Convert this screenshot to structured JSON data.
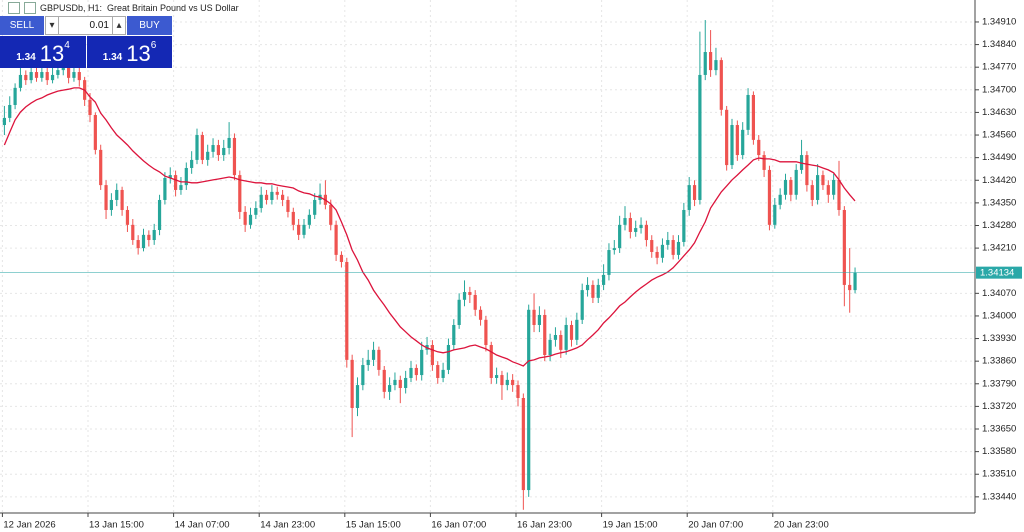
{
  "chart_data": {
    "type": "candlestick",
    "title": "GBPUSDb, H1:  Great Britain Pound vs US Dollar",
    "categories": [
      "12 Jan 2026",
      null,
      null,
      null,
      null,
      null,
      null,
      null,
      null,
      null,
      null,
      null,
      null,
      null,
      null,
      null,
      "13 Jan 15:00",
      null,
      null,
      null,
      null,
      null,
      null,
      null,
      null,
      null,
      null,
      null,
      null,
      null,
      null,
      null,
      "14 Jan 07:00",
      null,
      null,
      null,
      null,
      null,
      null,
      null,
      null,
      null,
      null,
      null,
      null,
      null,
      null,
      null,
      "14 Jan 23:00",
      null,
      null,
      null,
      null,
      null,
      null,
      null,
      null,
      null,
      null,
      null,
      null,
      null,
      null,
      null,
      "15 Jan 15:00",
      null,
      null,
      null,
      null,
      null,
      null,
      null,
      null,
      null,
      null,
      null,
      null,
      null,
      null,
      null,
      "16 Jan 07:00",
      null,
      null,
      null,
      null,
      null,
      null,
      null,
      null,
      null,
      null,
      null,
      null,
      null,
      null,
      null,
      "16 Jan 23:00",
      null,
      null,
      null,
      null,
      null,
      null,
      null,
      null,
      null,
      null,
      null,
      null,
      null,
      null,
      null,
      "19 Jan 15:00",
      null,
      null,
      null,
      null,
      null,
      null,
      null,
      null,
      null,
      null,
      null,
      null,
      null,
      null,
      null,
      "20 Jan 07:00",
      null,
      null,
      null,
      null,
      null,
      null,
      null,
      null,
      null,
      null,
      null,
      null,
      null,
      null,
      null,
      "20 Jan 23:00",
      null,
      null,
      null,
      null,
      null,
      null,
      null,
      null,
      null,
      null,
      null,
      null,
      null,
      null,
      null
    ],
    "open": [
      1.34591,
      1.34613,
      1.34653,
      1.34706,
      1.34746,
      1.3473,
      1.34755,
      1.34737,
      1.34755,
      1.3473,
      1.34746,
      1.34761,
      1.34768,
      1.34737,
      1.34755,
      1.3473,
      1.34669,
      1.34622,
      1.34514,
      1.34405,
      1.34328,
      1.34359,
      1.3439,
      1.34328,
      1.34282,
      1.34235,
      1.3421,
      1.34251,
      1.34235,
      1.34266,
      1.34359,
      1.34427,
      1.34436,
      1.3439,
      1.34405,
      1.34458,
      1.34483,
      1.3456,
      1.34483,
      1.34508,
      1.34529,
      1.34498,
      1.3452,
      1.34551,
      1.34436,
      1.34322,
      1.34282,
      1.34313,
      1.34334,
      1.34375,
      1.34359,
      1.34384,
      1.34375,
      1.34359,
      1.34322,
      1.34282,
      1.34251,
      1.34282,
      1.34313,
      1.34359,
      1.34375,
      1.34344,
      1.34282,
      1.34189,
      1.34167,
      1.33864,
      1.33715,
      1.33786,
      1.33848,
      1.33864,
      1.33895,
      1.33833,
      1.33765,
      1.33786,
      1.33802,
      1.33777,
      1.33808,
      1.33839,
      1.33817,
      1.33895,
      1.3391,
      1.33848,
      1.33808,
      1.33833,
      1.3391,
      1.33972,
      1.3405,
      1.34074,
      1.34065,
      1.34019,
      1.33988,
      1.3391,
      1.33808,
      1.33817,
      1.33786,
      1.33802,
      1.33786,
      1.33746,
      1.33461,
      1.34019,
      1.33972,
      1.34003,
      1.33879,
      1.33926,
      1.33941,
      1.33895,
      1.33972,
      1.33926,
      1.33988,
      1.3408,
      1.34096,
      1.34056,
      1.34096,
      1.34127,
      1.34204,
      1.3421,
      1.34282,
      1.34303,
      1.3426,
      1.34272,
      1.34282,
      1.34235,
      1.34198,
      1.3418,
      1.3422,
      1.34235,
      1.34189,
      1.34229,
      1.34328,
      1.34405,
      1.34359,
      1.34746,
      1.34817,
      1.34761,
      1.34792,
      1.34638,
      1.34467,
      1.34591,
      1.34498,
      1.34576,
      1.34684,
      1.34545,
      1.34498,
      1.34452,
      1.34282,
      1.34344,
      1.34375,
      1.34421,
      1.34375,
      1.34452,
      1.34498,
      1.34405,
      1.34359,
      1.34436,
      1.34405,
      1.34375,
      1.34421,
      1.34328,
      1.34096,
      1.3408
    ],
    "high": [
      1.3465,
      1.3468,
      1.3472,
      1.3477,
      1.3476,
      1.3479,
      1.3477,
      1.3478,
      1.3477,
      1.3477,
      1.3479,
      1.348,
      1.3478,
      1.34785,
      1.3477,
      1.3474,
      1.3469,
      1.3463,
      1.3453,
      1.3442,
      1.3438,
      1.3441,
      1.344,
      1.3434,
      1.343,
      1.3425,
      1.3427,
      1.34265,
      1.34285,
      1.34375,
      1.34445,
      1.3446,
      1.3445,
      1.3443,
      1.34475,
      1.3451,
      1.3458,
      1.3457,
      1.3453,
      1.3455,
      1.34545,
      1.34545,
      1.346,
      1.34565,
      1.3445,
      1.3434,
      1.34335,
      1.34355,
      1.344,
      1.3439,
      1.34405,
      1.344,
      1.3439,
      1.3437,
      1.34335,
      1.343,
      1.343,
      1.3433,
      1.3438,
      1.3441,
      1.3442,
      1.3436,
      1.34295,
      1.342,
      1.3418,
      1.3388,
      1.3381,
      1.3387,
      1.33895,
      1.3392,
      1.33905,
      1.33845,
      1.3381,
      1.33825,
      1.33815,
      1.3383,
      1.3386,
      1.3385,
      1.3392,
      1.33935,
      1.33925,
      1.3386,
      1.33855,
      1.3393,
      1.3399,
      1.3407,
      1.3411,
      1.3409,
      1.3408,
      1.3403,
      1.34,
      1.3392,
      1.3384,
      1.3383,
      1.33825,
      1.3382,
      1.338,
      1.3376,
      1.34035,
      1.3407,
      1.3403,
      1.3402,
      1.33945,
      1.33965,
      1.33955,
      1.33995,
      1.33985,
      1.3401,
      1.341,
      1.3412,
      1.3411,
      1.34115,
      1.3416,
      1.34225,
      1.34235,
      1.3431,
      1.3434,
      1.3432,
      1.34295,
      1.34305,
      1.34295,
      1.3425,
      1.34215,
      1.3424,
      1.3426,
      1.3425,
      1.3425,
      1.3435,
      1.3443,
      1.3442,
      1.3488,
      1.34916,
      1.34885,
      1.3483,
      1.348,
      1.3465,
      1.3461,
      1.34605,
      1.346,
      1.34705,
      1.34695,
      1.3456,
      1.3451,
      1.34465,
      1.34365,
      1.34395,
      1.3444,
      1.3443,
      1.3447,
      1.34545,
      1.3451,
      1.3442,
      1.3447,
      1.3445,
      1.3442,
      1.3444,
      1.3448,
      1.3434,
      1.3421,
      1.3415
    ],
    "low": [
      1.3456,
      1.346,
      1.3464,
      1.34695,
      1.34715,
      1.3472,
      1.34725,
      1.34725,
      1.34715,
      1.3472,
      1.34735,
      1.34745,
      1.3472,
      1.34725,
      1.3471,
      1.3465,
      1.346,
      1.345,
      1.3439,
      1.343,
      1.3431,
      1.3434,
      1.3431,
      1.3426,
      1.3422,
      1.3419,
      1.342,
      1.34215,
      1.3422,
      1.3425,
      1.34345,
      1.3441,
      1.3437,
      1.34375,
      1.3439,
      1.3444,
      1.3447,
      1.3447,
      1.34465,
      1.3449,
      1.3448,
      1.3448,
      1.345,
      1.3442,
      1.343,
      1.3426,
      1.3427,
      1.343,
      1.3432,
      1.34345,
      1.34345,
      1.3436,
      1.3434,
      1.34305,
      1.34265,
      1.34235,
      1.3424,
      1.3427,
      1.343,
      1.34345,
      1.3433,
      1.34265,
      1.3417,
      1.3415,
      1.3384,
      1.33625,
      1.3369,
      1.3377,
      1.3383,
      1.33845,
      1.33815,
      1.33745,
      1.3374,
      1.3377,
      1.3373,
      1.3376,
      1.33795,
      1.338,
      1.338,
      1.3388,
      1.3383,
      1.3379,
      1.33795,
      1.3382,
      1.33895,
      1.3396,
      1.3403,
      1.3404,
      1.34,
      1.3397,
      1.3389,
      1.3379,
      1.3379,
      1.3374,
      1.3377,
      1.33765,
      1.3372,
      1.334,
      1.3344,
      1.3395,
      1.3395,
      1.3386,
      1.3386,
      1.33905,
      1.3387,
      1.3388,
      1.33905,
      1.3391,
      1.33975,
      1.3406,
      1.3404,
      1.3404,
      1.3408,
      1.3411,
      1.3419,
      1.34195,
      1.34265,
      1.3424,
      1.34245,
      1.34255,
      1.34215,
      1.3418,
      1.3416,
      1.34165,
      1.34205,
      1.34175,
      1.34175,
      1.34215,
      1.3431,
      1.3434,
      1.34345,
      1.3473,
      1.3474,
      1.34745,
      1.3462,
      1.3445,
      1.34455,
      1.3448,
      1.34485,
      1.3456,
      1.3453,
      1.3448,
      1.3443,
      1.34265,
      1.3427,
      1.3433,
      1.3436,
      1.34355,
      1.3436,
      1.3444,
      1.34385,
      1.3434,
      1.34345,
      1.3439,
      1.3435,
      1.3436,
      1.3431,
      1.3403,
      1.3401,
      1.3407
    ],
    "close": [
      1.34613,
      1.34653,
      1.34706,
      1.34746,
      1.3473,
      1.34755,
      1.34737,
      1.34755,
      1.3473,
      1.34746,
      1.34761,
      1.34768,
      1.34737,
      1.34755,
      1.3473,
      1.34669,
      1.34622,
      1.34514,
      1.34405,
      1.34328,
      1.34359,
      1.3439,
      1.34328,
      1.34282,
      1.34235,
      1.3421,
      1.34251,
      1.34235,
      1.34266,
      1.34359,
      1.34427,
      1.34436,
      1.3439,
      1.34405,
      1.34458,
      1.34483,
      1.3456,
      1.34483,
      1.34508,
      1.34529,
      1.34498,
      1.3452,
      1.34551,
      1.34436,
      1.34322,
      1.34282,
      1.34313,
      1.34334,
      1.34375,
      1.34359,
      1.34384,
      1.34375,
      1.34359,
      1.34322,
      1.34282,
      1.34251,
      1.34282,
      1.34313,
      1.34359,
      1.34375,
      1.34344,
      1.34282,
      1.34189,
      1.34167,
      1.33864,
      1.33715,
      1.33786,
      1.33848,
      1.33864,
      1.33895,
      1.33833,
      1.33765,
      1.33786,
      1.33802,
      1.33777,
      1.33808,
      1.33839,
      1.33817,
      1.33895,
      1.3391,
      1.33848,
      1.33808,
      1.33833,
      1.3391,
      1.33972,
      1.3405,
      1.34074,
      1.34065,
      1.34019,
      1.33988,
      1.3391,
      1.33808,
      1.33817,
      1.33786,
      1.33802,
      1.33786,
      1.33746,
      1.33461,
      1.34019,
      1.33972,
      1.34003,
      1.33879,
      1.33926,
      1.33941,
      1.33895,
      1.33972,
      1.33926,
      1.33988,
      1.3408,
      1.34096,
      1.34056,
      1.34096,
      1.34127,
      1.34204,
      1.3421,
      1.34282,
      1.34303,
      1.3426,
      1.34272,
      1.34282,
      1.34235,
      1.34198,
      1.3418,
      1.3422,
      1.34235,
      1.34189,
      1.34229,
      1.34328,
      1.34405,
      1.34359,
      1.34746,
      1.34817,
      1.34761,
      1.34792,
      1.34638,
      1.34467,
      1.34591,
      1.34498,
      1.34576,
      1.34684,
      1.34545,
      1.34498,
      1.34452,
      1.34282,
      1.34344,
      1.34375,
      1.34421,
      1.34375,
      1.34452,
      1.34498,
      1.34405,
      1.34359,
      1.34436,
      1.34405,
      1.34375,
      1.34421,
      1.34328,
      1.34096,
      1.3408,
      1.34134
    ],
    "up_color": "#26a69a",
    "down_color": "#ef5350",
    "overlay": {
      "color": "#dc143c",
      "values": [
        1.34529,
        1.34569,
        1.34607,
        1.34631,
        1.34647,
        1.34659,
        1.34669,
        1.34675,
        1.34684,
        1.3469,
        1.34696,
        1.34699,
        1.34702,
        1.34706,
        1.34706,
        1.34699,
        1.34678,
        1.34662,
        1.34628,
        1.34607,
        1.34582,
        1.3456,
        1.34545,
        1.34529,
        1.34511,
        1.34495,
        1.3448,
        1.34467,
        1.34455,
        1.34446,
        1.34433,
        1.34427,
        1.34421,
        1.34415,
        1.34415,
        1.34412,
        1.34412,
        1.34415,
        1.34418,
        1.34421,
        1.34424,
        1.34427,
        1.3443,
        1.34427,
        1.34421,
        1.34418,
        1.34415,
        1.34412,
        1.34412,
        1.34409,
        1.34409,
        1.34405,
        1.34402,
        1.34399,
        1.34396,
        1.34387,
        1.34381,
        1.34378,
        1.34371,
        1.34368,
        1.34359,
        1.34347,
        1.34328,
        1.34291,
        1.34251,
        1.34204,
        1.34173,
        1.34136,
        1.34111,
        1.3408,
        1.34056,
        1.34034,
        1.34009,
        1.33988,
        1.33966,
        1.33951,
        1.33935,
        1.33923,
        1.3391,
        1.33901,
        1.33895,
        1.33889,
        1.33886,
        1.33889,
        1.33895,
        1.33898,
        1.33901,
        1.33907,
        1.3391,
        1.33904,
        1.33898,
        1.33889,
        1.33879,
        1.33873,
        1.33867,
        1.33858,
        1.33852,
        1.33845,
        1.33861,
        1.33864,
        1.3387,
        1.33873,
        1.33876,
        1.33882,
        1.33886,
        1.33889,
        1.33895,
        1.33901,
        1.3391,
        1.33926,
        1.33941,
        1.33957,
        1.33978,
        1.33994,
        1.34012,
        1.34031,
        1.34043,
        1.34059,
        1.34074,
        1.34087,
        1.34099,
        1.34111,
        1.3412,
        1.34127,
        1.34136,
        1.34149,
        1.34167,
        1.34186,
        1.34204,
        1.34226,
        1.3426,
        1.34291,
        1.34334,
        1.34359,
        1.34384,
        1.34402,
        1.34421,
        1.34436,
        1.34452,
        1.34467,
        1.34483,
        1.34489,
        1.34486,
        1.34486,
        1.34483,
        1.34477,
        1.34477,
        1.34477,
        1.34477,
        1.34473,
        1.3447,
        1.34467,
        1.34464,
        1.34458,
        1.34452,
        1.34443,
        1.34421,
        1.34396,
        1.34375,
        1.34356
      ]
    },
    "last_price": 1.34134,
    "last_price_color": "#2aa8a8",
    "ylim": [
      1.3339,
      1.34978
    ],
    "yticks": [
      {
        "value": 1.3491,
        "label": "1.34910"
      },
      {
        "value": 1.3484,
        "label": "1.34840"
      },
      {
        "value": 1.3477,
        "label": "1.34770"
      },
      {
        "value": 1.347,
        "label": "1.34700"
      },
      {
        "value": 1.3463,
        "label": "1.34630"
      },
      {
        "value": 1.3456,
        "label": "1.34560"
      },
      {
        "value": 1.3449,
        "label": "1.34490"
      },
      {
        "value": 1.3442,
        "label": "1.34420"
      },
      {
        "value": 1.3435,
        "label": "1.34350"
      },
      {
        "value": 1.3428,
        "label": "1.34280"
      },
      {
        "value": 1.3421,
        "label": "1.34210"
      },
      {
        "value": 1.3407,
        "label": "1.34070"
      },
      {
        "value": 1.34,
        "label": "1.34000"
      },
      {
        "value": 1.3393,
        "label": "1.33930"
      },
      {
        "value": 1.3386,
        "label": "1.33860"
      },
      {
        "value": 1.3379,
        "label": "1.33790"
      },
      {
        "value": 1.3372,
        "label": "1.33720"
      },
      {
        "value": 1.3365,
        "label": "1.33650"
      },
      {
        "value": 1.3358,
        "label": "1.33580"
      },
      {
        "value": 1.3351,
        "label": "1.33510"
      },
      {
        "value": 1.3344,
        "label": "1.33440"
      }
    ],
    "grid": true
  },
  "trade_panel": {
    "sell_label": "SELL",
    "buy_label": "BUY",
    "volume": "0.01",
    "sell_price": {
      "big": "1.34",
      "mid": "13",
      "small": "4"
    },
    "buy_price": {
      "big": "1.34",
      "mid": "13",
      "small": "6"
    }
  }
}
